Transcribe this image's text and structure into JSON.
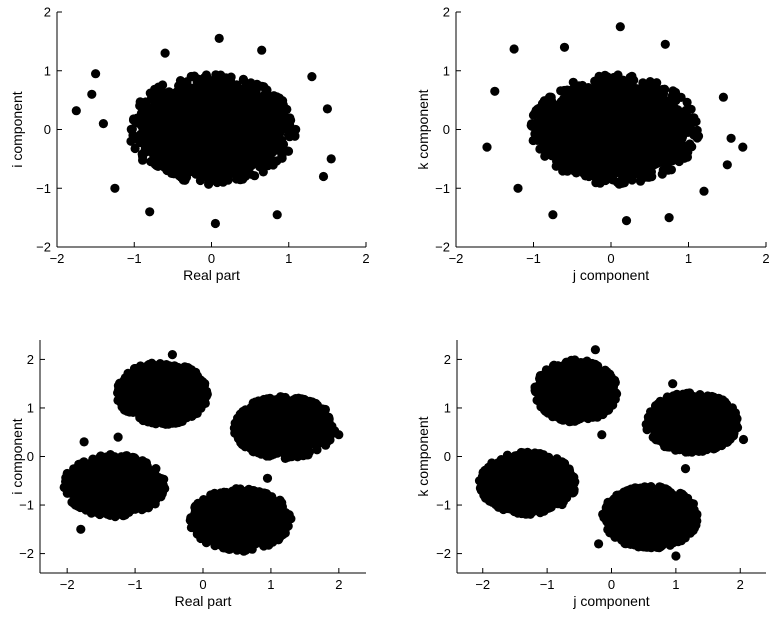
{
  "chart_data": [
    {
      "type": "scatter",
      "title": "",
      "xlabel": "Real part",
      "ylabel": "i component",
      "xlim": [
        -2,
        2
      ],
      "ylim": [
        -2,
        2
      ],
      "xticks": [
        "−2",
        "−1",
        "0",
        "1",
        "2"
      ],
      "yticks": [
        "−2",
        "−1",
        "0",
        "1",
        "2"
      ],
      "grid": false,
      "marker_color": "#000000",
      "clusters": [
        {
          "center": [
            0.0,
            0.0
          ],
          "radius": [
            1.05,
            0.9
          ],
          "density": 0.99
        }
      ],
      "outliers": [
        [
          -1.75,
          0.32
        ],
        [
          -1.5,
          0.95
        ],
        [
          -1.55,
          0.6
        ],
        [
          1.55,
          -0.5
        ],
        [
          1.5,
          0.35
        ],
        [
          0.05,
          -1.6
        ],
        [
          0.1,
          1.55
        ],
        [
          -1.4,
          0.1
        ],
        [
          1.45,
          -0.8
        ],
        [
          -1.25,
          -1.0
        ],
        [
          1.3,
          0.9
        ],
        [
          -0.6,
          1.3
        ],
        [
          0.65,
          1.35
        ],
        [
          -0.8,
          -1.4
        ],
        [
          0.85,
          -1.45
        ]
      ]
    },
    {
      "type": "scatter",
      "title": "",
      "xlabel": "j component",
      "ylabel": "k component",
      "xlim": [
        -2,
        2
      ],
      "ylim": [
        -2,
        2
      ],
      "xticks": [
        "−2",
        "−1",
        "0",
        "1",
        "2"
      ],
      "yticks": [
        "−2",
        "−1",
        "0",
        "1",
        "2"
      ],
      "grid": false,
      "marker_color": "#000000",
      "clusters": [
        {
          "center": [
            0.05,
            0.0
          ],
          "radius": [
            1.05,
            0.9
          ],
          "density": 0.99
        }
      ],
      "outliers": [
        [
          -1.25,
          1.37
        ],
        [
          0.12,
          1.75
        ],
        [
          -1.6,
          -0.3
        ],
        [
          1.7,
          -0.3
        ],
        [
          1.55,
          -0.15
        ],
        [
          -1.5,
          0.65
        ],
        [
          1.45,
          0.55
        ],
        [
          0.2,
          -1.55
        ],
        [
          -0.6,
          1.4
        ],
        [
          0.7,
          1.45
        ],
        [
          -1.2,
          -1.0
        ],
        [
          1.2,
          -1.05
        ],
        [
          -0.75,
          -1.45
        ],
        [
          0.75,
          -1.5
        ],
        [
          1.5,
          -0.6
        ]
      ]
    },
    {
      "type": "scatter",
      "title": "",
      "xlabel": "Real part",
      "ylabel": "i component",
      "xlim": [
        -2.4,
        2.4
      ],
      "ylim": [
        -2.4,
        2.4
      ],
      "xticks": [
        "−2",
        "−1",
        "0",
        "1",
        "2"
      ],
      "yticks": [
        "−2",
        "−1",
        "0",
        "1",
        "2"
      ],
      "grid": false,
      "marker_color": "#000000",
      "clusters": [
        {
          "center": [
            -0.6,
            1.3
          ],
          "radius": [
            0.65,
            0.62
          ],
          "density": 0.98
        },
        {
          "center": [
            1.2,
            0.6
          ],
          "radius": [
            0.72,
            0.62
          ],
          "density": 0.98
        },
        {
          "center": [
            -1.3,
            -0.6
          ],
          "radius": [
            0.72,
            0.62
          ],
          "density": 0.98
        },
        {
          "center": [
            0.55,
            -1.3
          ],
          "radius": [
            0.72,
            0.62
          ],
          "density": 0.98
        }
      ],
      "outliers": [
        [
          -2.0,
          -0.35
        ],
        [
          -1.8,
          -1.5
        ],
        [
          -0.45,
          2.1
        ],
        [
          2.0,
          0.45
        ],
        [
          0.6,
          -1.95
        ],
        [
          -1.75,
          0.3
        ],
        [
          -1.25,
          0.4
        ],
        [
          0.95,
          -0.45
        ]
      ]
    },
    {
      "type": "scatter",
      "title": "",
      "xlabel": "j component",
      "ylabel": "k component",
      "xlim": [
        -2.4,
        2.4
      ],
      "ylim": [
        -2.4,
        2.4
      ],
      "xticks": [
        "−2",
        "−1",
        "0",
        "1",
        "2"
      ],
      "yticks": [
        "−2",
        "−1",
        "0",
        "1",
        "2"
      ],
      "grid": false,
      "marker_color": "#000000",
      "clusters": [
        {
          "center": [
            -0.55,
            1.35
          ],
          "radius": [
            0.62,
            0.62
          ],
          "density": 0.98
        },
        {
          "center": [
            1.25,
            0.7
          ],
          "radius": [
            0.7,
            0.6
          ],
          "density": 0.98
        },
        {
          "center": [
            -1.3,
            -0.55
          ],
          "radius": [
            0.72,
            0.62
          ],
          "density": 0.98
        },
        {
          "center": [
            0.6,
            -1.25
          ],
          "radius": [
            0.72,
            0.62
          ],
          "density": 0.98
        }
      ],
      "outliers": [
        [
          -0.25,
          2.2
        ],
        [
          0.95,
          1.5
        ],
        [
          2.05,
          0.35
        ],
        [
          -2.05,
          -0.5
        ],
        [
          -0.2,
          -1.8
        ],
        [
          1.0,
          -2.05
        ],
        [
          1.15,
          -0.25
        ],
        [
          -0.15,
          0.45
        ]
      ]
    }
  ]
}
